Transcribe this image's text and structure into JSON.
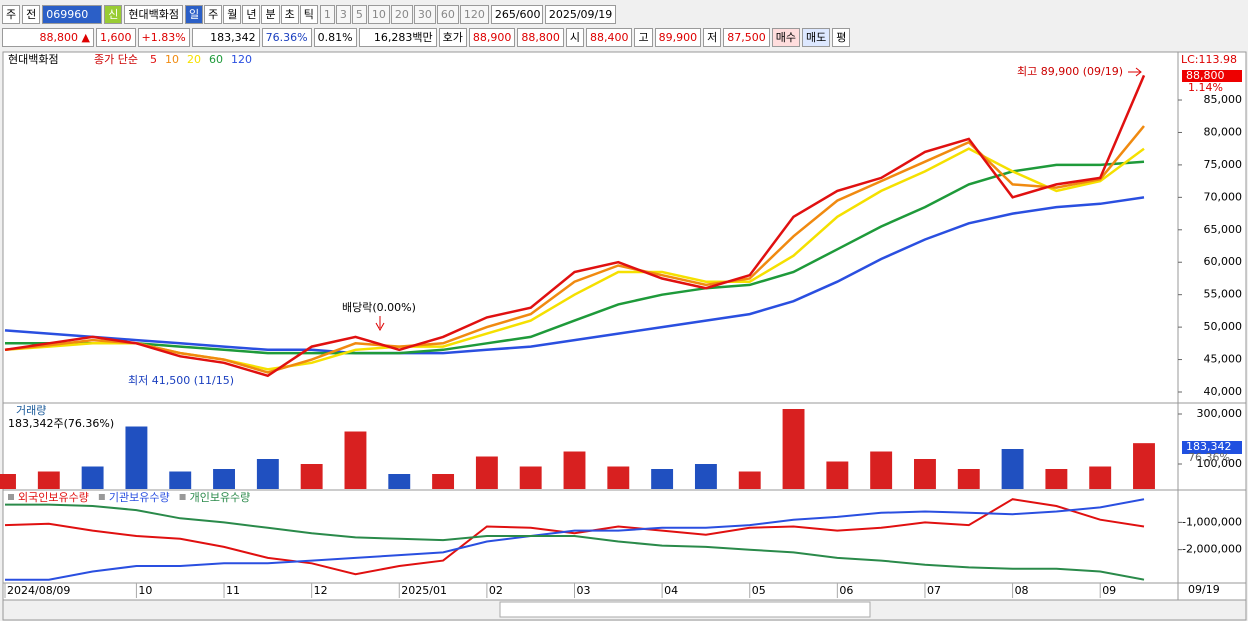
{
  "toolbar": {
    "market": "주",
    "prev": "전",
    "code": "069960",
    "name_tag": "신",
    "name": "현대백화점",
    "periods": [
      "일",
      "주",
      "월",
      "년",
      "분",
      "초",
      "틱"
    ],
    "intervals": [
      "1",
      "3",
      "5",
      "10",
      "20",
      "30",
      "60",
      "120"
    ],
    "count": "265/600",
    "date": "2025/09/19"
  },
  "quote": {
    "price": "88,800 ▲",
    "change": "1,600",
    "change_pct": "+1.83%",
    "volume": "183,342",
    "volume_ratio": "76.36%",
    "turnover": "0.81%",
    "amount": "16,283백만",
    "bid_label": "호가",
    "ask": "88,900",
    "bid": "88,800",
    "open_label": "시",
    "open": "88,400",
    "high_label": "고",
    "high": "89,900",
    "low_label": "저",
    "low": "87,500",
    "buy": "매수",
    "sell": "매도",
    "avg": "평"
  },
  "chart_data": [
    {
      "type": "line",
      "name": "현대백화점",
      "subtitle": "종가 단순",
      "high_label": "최고 89,900 (09/19)",
      "low_label": "최저 41,500 (11/15)",
      "event_label": "배당락(0.00%)",
      "lc_label": "LC:113.98",
      "last_value_label": "88,800",
      "last_pct": "1.14%",
      "ylim": [
        38460,
        92400
      ],
      "yticks": [
        {
          "value": 40000,
          "label": "40,000"
        },
        {
          "value": 45000,
          "label": "45,000"
        },
        {
          "value": 50000,
          "label": "50,000"
        },
        {
          "value": 55000,
          "label": "55,000"
        },
        {
          "value": 60000,
          "label": "60,000"
        },
        {
          "value": 65000,
          "label": "65,000"
        },
        {
          "value": 70000,
          "label": "70,000"
        },
        {
          "value": 75000,
          "label": "75,000"
        },
        {
          "value": 80000,
          "label": "80,000"
        },
        {
          "value": 85000,
          "label": "85,000"
        }
      ],
      "series": [
        {
          "name": "120",
          "color": "#2a4fe0",
          "values": [
            49500,
            49000,
            48500,
            48000,
            47500,
            47000,
            46500,
            46500,
            46000,
            46000,
            46000,
            46500,
            47000,
            48000,
            49000,
            50000,
            51000,
            52000,
            54000,
            57000,
            60500,
            63500,
            66000,
            67500,
            68500,
            69000,
            70000
          ]
        },
        {
          "name": "60",
          "color": "#1e9a3a",
          "values": [
            47500,
            47500,
            47500,
            47500,
            47000,
            46500,
            46000,
            46000,
            46000,
            46000,
            46500,
            47500,
            48500,
            51000,
            53500,
            55000,
            56000,
            56500,
            58500,
            62000,
            65500,
            68500,
            72000,
            74000,
            75000,
            75000,
            75500
          ]
        },
        {
          "name": "20",
          "color": "#f5e000",
          "values": [
            46500,
            47000,
            47500,
            47500,
            46000,
            45000,
            43500,
            44500,
            46500,
            47000,
            47000,
            49000,
            51000,
            55000,
            58500,
            58500,
            57000,
            57000,
            61000,
            67000,
            71000,
            74000,
            77500,
            74000,
            71000,
            72500,
            77500
          ]
        },
        {
          "name": "10",
          "color": "#f08a10",
          "values": [
            46500,
            47200,
            48000,
            47500,
            46000,
            45000,
            43000,
            45000,
            47500,
            47000,
            47500,
            50000,
            52000,
            57000,
            59500,
            58000,
            56500,
            57500,
            64000,
            69500,
            72500,
            75500,
            78500,
            72000,
            71500,
            72800,
            81000
          ]
        },
        {
          "name": "5",
          "color": "#e01010",
          "values": [
            46500,
            47500,
            48500,
            47500,
            45500,
            44500,
            42500,
            47000,
            48500,
            46500,
            48500,
            51500,
            53000,
            58500,
            60000,
            57500,
            56000,
            58000,
            67000,
            71000,
            73000,
            77000,
            79000,
            70000,
            72000,
            73000,
            88800
          ]
        }
      ]
    },
    {
      "type": "bar",
      "title": "거래량",
      "subtitle": "183,342주(76.36%)",
      "last_value_label": "183,342",
      "last_pct": "76.36%",
      "ylim": [
        0,
        340000
      ],
      "yticks": [
        {
          "value": 100000,
          "label": "100,000"
        },
        {
          "value": 300000,
          "label": "300,000"
        }
      ],
      "values": [
        60000,
        70000,
        90000,
        250000,
        70000,
        80000,
        120000,
        100000,
        230000,
        60000,
        60000,
        130000,
        90000,
        150000,
        90000,
        80000,
        100000,
        70000,
        320000,
        110000,
        150000,
        120000,
        80000,
        160000,
        80000,
        90000,
        183342
      ],
      "colors": [
        "#d82020",
        "#d82020",
        "#2050c0",
        "#2050c0",
        "#2050c0",
        "#2050c0",
        "#2050c0",
        "#d82020",
        "#d82020",
        "#2050c0",
        "#d82020",
        "#d82020",
        "#d82020",
        "#d82020",
        "#d82020",
        "#2050c0",
        "#2050c0",
        "#d82020",
        "#d82020",
        "#d82020",
        "#d82020",
        "#d82020",
        "#d82020",
        "#2050c0",
        "#d82020",
        "#d82020",
        "#d82020"
      ]
    },
    {
      "type": "line",
      "current_x_label": "09/19",
      "categories": [
        "2024/08/09",
        null,
        null,
        "10",
        null,
        "11",
        null,
        "12",
        null,
        "2025/01",
        null,
        "02",
        null,
        "03",
        null,
        "04",
        null,
        "05",
        null,
        "06",
        null,
        "07",
        null,
        "08",
        null,
        "09",
        null
      ],
      "ylim": [
        -3185000,
        150000
      ],
      "yticks": [
        {
          "value": -1000000,
          "label": "-1,000,000"
        },
        {
          "value": -2000000,
          "label": "-2,000,000"
        }
      ],
      "series": [
        {
          "name": "외국인보유수량",
          "color": "#e01010",
          "values": [
            -1100000,
            -1050000,
            -1300000,
            -1500000,
            -1600000,
            -1900000,
            -2300000,
            -2500000,
            -2900000,
            -2600000,
            -2400000,
            -1150000,
            -1200000,
            -1400000,
            -1150000,
            -1300000,
            -1450000,
            -1200000,
            -1150000,
            -1300000,
            -1200000,
            -1000000,
            -1100000,
            -150000,
            -400000,
            -900000,
            -1150000
          ]
        },
        {
          "name": "기관보유수량",
          "color": "#2a4fe0",
          "values": [
            -3100000,
            -3100000,
            -2800000,
            -2600000,
            -2600000,
            -2500000,
            -2500000,
            -2400000,
            -2300000,
            -2200000,
            -2100000,
            -1700000,
            -1500000,
            -1300000,
            -1300000,
            -1200000,
            -1200000,
            -1100000,
            -900000,
            -800000,
            -650000,
            -600000,
            -650000,
            -700000,
            -600000,
            -450000,
            -150000
          ]
        },
        {
          "name": "개인보유수량",
          "color": "#2a8a4a",
          "values": [
            -350000,
            -350000,
            -400000,
            -550000,
            -850000,
            -1000000,
            -1200000,
            -1400000,
            -1550000,
            -1600000,
            -1650000,
            -1500000,
            -1500000,
            -1500000,
            -1700000,
            -1850000,
            -1900000,
            -2000000,
            -2100000,
            -2300000,
            -2400000,
            -2550000,
            -2650000,
            -2700000,
            -2700000,
            -2800000,
            -3100000
          ]
        }
      ]
    }
  ]
}
